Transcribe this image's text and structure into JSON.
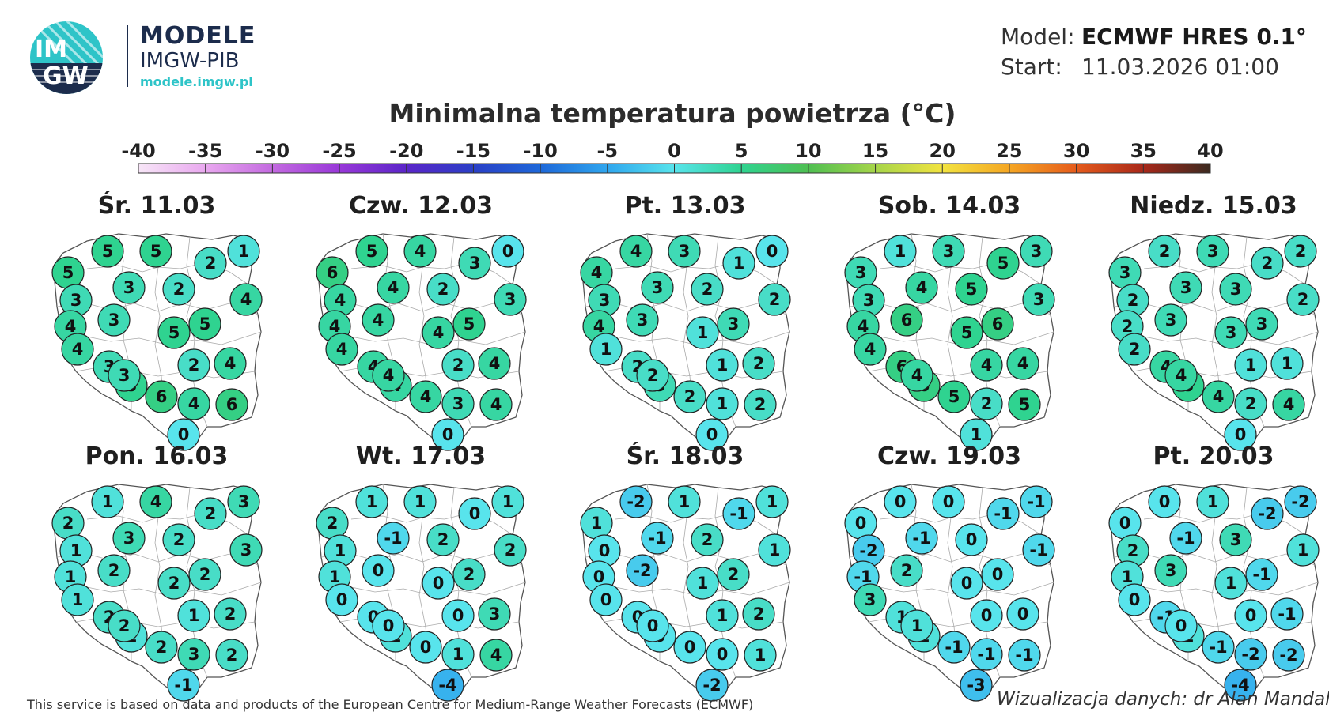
{
  "logo": {
    "line1": "IM",
    "line2": "GW"
  },
  "brand": {
    "title": "MODELE",
    "subtitle": "IMGW-PIB",
    "url": "modele.imgw.pl"
  },
  "meta": {
    "model_label": "Model:",
    "model_value": "ECMWF HRES 0.1°",
    "start_label": "Start:",
    "start_value": "11.03.2026 01:00"
  },
  "title": "Minimalna temperatura powietrza (°C)",
  "colorbar": {
    "ticks": [
      "-40",
      "-35",
      "-30",
      "-25",
      "-20",
      "-15",
      "-10",
      "-5",
      "0",
      "5",
      "10",
      "15",
      "20",
      "25",
      "30",
      "35",
      "40"
    ],
    "min": -40,
    "max": 40,
    "stops": [
      {
        "v": -40,
        "c": "#f7e6f7"
      },
      {
        "v": -35,
        "c": "#e9a8ef"
      },
      {
        "v": -30,
        "c": "#c36ae0"
      },
      {
        "v": -25,
        "c": "#9838d8"
      },
      {
        "v": -20,
        "c": "#5a25c8"
      },
      {
        "v": -15,
        "c": "#2a3fc6"
      },
      {
        "v": -10,
        "c": "#1e68d9"
      },
      {
        "v": -5,
        "c": "#2fa6ee"
      },
      {
        "v": 0,
        "c": "#58e4ec"
      },
      {
        "v": 5,
        "c": "#2fd390"
      },
      {
        "v": 10,
        "c": "#4fbf52"
      },
      {
        "v": 15,
        "c": "#a6d54a"
      },
      {
        "v": 20,
        "c": "#f2e340"
      },
      {
        "v": 25,
        "c": "#f5a623"
      },
      {
        "v": 30,
        "c": "#e55b1c"
      },
      {
        "v": 35,
        "c": "#a8281a"
      },
      {
        "v": 40,
        "c": "#3b2a20"
      }
    ]
  },
  "stations": [
    [
      86,
      345
    ],
    [
      136,
      318
    ],
    [
      197,
      318
    ],
    [
      266,
      333
    ],
    [
      308,
      318
    ],
    [
      96,
      380
    ],
    [
      163,
      364
    ],
    [
      226,
      366
    ],
    [
      311,
      379
    ],
    [
      89,
      413
    ],
    [
      144,
      405
    ],
    [
      220,
      421
    ],
    [
      259,
      410
    ],
    [
      98,
      442
    ],
    [
      138,
      464
    ],
    [
      245,
      462
    ],
    [
      291,
      460
    ],
    [
      166,
      488
    ],
    [
      204,
      502
    ],
    [
      245,
      511
    ],
    [
      293,
      512
    ],
    [
      232,
      550
    ],
    [
      157,
      475
    ]
  ],
  "days": [
    {
      "label": "Śr. 11.03",
      "values": [
        5,
        5,
        5,
        2,
        1,
        3,
        3,
        2,
        4,
        4,
        3,
        5,
        5,
        4,
        3,
        2,
        4,
        5,
        6,
        4,
        6,
        0,
        3
      ]
    },
    {
      "label": "Czw. 12.03",
      "values": [
        6,
        5,
        4,
        3,
        0,
        4,
        4,
        2,
        3,
        4,
        4,
        4,
        5,
        4,
        4,
        2,
        4,
        4,
        4,
        3,
        4,
        0,
        4
      ]
    },
    {
      "label": "Pt. 13.03",
      "values": [
        4,
        4,
        3,
        1,
        0,
        3,
        3,
        2,
        2,
        4,
        3,
        1,
        3,
        1,
        2,
        1,
        2,
        3,
        2,
        1,
        2,
        0,
        2
      ]
    },
    {
      "label": "Sob. 14.03",
      "values": [
        3,
        1,
        3,
        5,
        3,
        3,
        4,
        5,
        3,
        4,
        6,
        5,
        6,
        4,
        6,
        4,
        4,
        6,
        5,
        2,
        5,
        1,
        4
      ]
    },
    {
      "label": "Niedz. 15.03",
      "values": [
        3,
        2,
        3,
        2,
        2,
        2,
        3,
        3,
        2,
        2,
        3,
        3,
        3,
        2,
        4,
        1,
        1,
        5,
        4,
        2,
        4,
        0,
        4
      ]
    },
    {
      "label": "Pon. 16.03",
      "values": [
        2,
        1,
        4,
        2,
        3,
        1,
        3,
        2,
        3,
        1,
        2,
        2,
        2,
        1,
        2,
        1,
        2,
        1,
        2,
        3,
        2,
        -1,
        2
      ]
    },
    {
      "label": "Wt. 17.03",
      "values": [
        2,
        1,
        1,
        0,
        1,
        1,
        -1,
        2,
        2,
        1,
        0,
        0,
        2,
        0,
        0,
        0,
        3,
        1,
        0,
        1,
        4,
        -4,
        0
      ]
    },
    {
      "label": "Śr. 18.03",
      "values": [
        1,
        -2,
        1,
        -1,
        1,
        0,
        -1,
        2,
        1,
        0,
        -2,
        1,
        2,
        0,
        0,
        1,
        2,
        0,
        0,
        0,
        1,
        -2,
        0
      ]
    },
    {
      "label": "Czw. 19.03",
      "values": [
        0,
        0,
        0,
        -1,
        -1,
        -2,
        -1,
        0,
        -1,
        -1,
        2,
        0,
        0,
        3,
        1,
        0,
        0,
        1,
        -1,
        -1,
        -1,
        -3,
        1
      ]
    },
    {
      "label": "Pt. 20.03",
      "values": [
        0,
        0,
        1,
        -2,
        -2,
        2,
        -1,
        3,
        1,
        1,
        3,
        1,
        -1,
        0,
        -1,
        0,
        -1,
        1,
        -1,
        -2,
        -2,
        -4,
        0
      ]
    }
  ],
  "footer": {
    "left": "This service is based on data and products of the European Centre for Medium-Range Weather Forecasts (ECMWF)",
    "right": "Wizualizacja danych: dr Alan Mandal"
  }
}
